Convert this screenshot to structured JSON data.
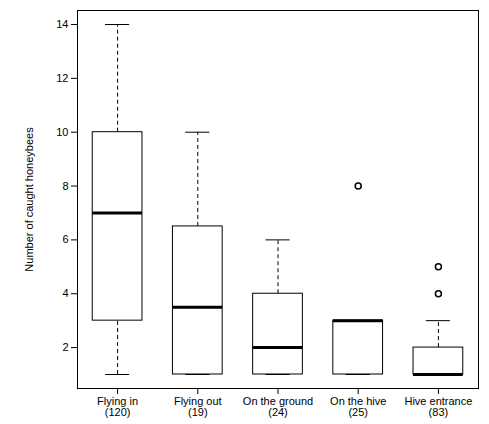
{
  "chart_data": {
    "type": "box",
    "y_label": "Number of caught honeybees",
    "categories": [
      "Flying in\n(120)",
      "Flying out\n(19)",
      "On the ground\n(24)",
      "On the hive\n(25)",
      "Hive entrance\n(83)"
    ],
    "boxes": [
      {
        "whisker_low": 1,
        "q1": 3,
        "median": 7,
        "q3": 10,
        "whisker_high": 14,
        "outliers": []
      },
      {
        "whisker_low": 1,
        "q1": 1,
        "median": 3.5,
        "q3": 6.5,
        "whisker_high": 10,
        "outliers": []
      },
      {
        "whisker_low": 1,
        "q1": 1,
        "median": 2,
        "q3": 4,
        "whisker_high": 6,
        "outliers": []
      },
      {
        "whisker_low": 1,
        "q1": 1,
        "median": 3,
        "q3": 3,
        "whisker_high": 3,
        "outliers": [
          8
        ]
      },
      {
        "whisker_low": 1,
        "q1": 1,
        "median": 1,
        "q3": 2,
        "whisker_high": 3,
        "outliers": [
          4,
          5
        ]
      }
    ],
    "color": "#ffffff",
    "ylim": [
      0.48,
      14.52
    ],
    "yticks": [
      2,
      4,
      6,
      8,
      10,
      12,
      14
    ],
    "grid": false
  }
}
